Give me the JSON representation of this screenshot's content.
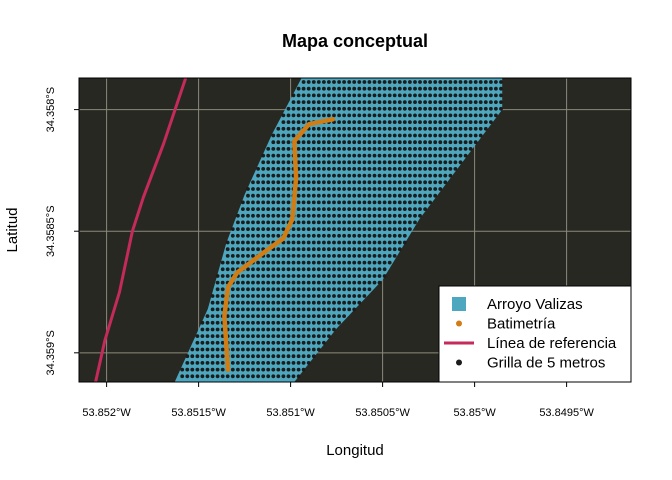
{
  "title": "Mapa conceptual",
  "xlabel": "Longitud",
  "ylabel": "Latitud",
  "colors": {
    "panel_bg": "#282823",
    "grid": "#8a8a7a",
    "stream": "#4da8bf",
    "bathymetry": "#d07d16",
    "reference_line": "#c42a5a",
    "grid_points": "#1c1c1c"
  },
  "chart_data": {
    "type": "map",
    "xlim": [
      -53.85215,
      -53.84915
    ],
    "ylim": [
      -34.35912,
      -34.35787
    ],
    "x_ticks": [
      {
        "value": -53.852,
        "label": "53.852°W"
      },
      {
        "value": -53.8515,
        "label": "53.8515°W"
      },
      {
        "value": -53.851,
        "label": "53.851°W"
      },
      {
        "value": -53.8505,
        "label": "53.8505°W"
      },
      {
        "value": -53.85,
        "label": "53.85°W"
      },
      {
        "value": -53.8495,
        "label": "53.8495°W"
      }
    ],
    "y_ticks": [
      {
        "value": -34.358,
        "label": "34.358°S"
      },
      {
        "value": -34.3585,
        "label": "34.3585°S"
      },
      {
        "value": -34.359,
        "label": "34.359°S"
      }
    ],
    "grid": true,
    "legend": {
      "placement": "bottom-right",
      "entries": [
        {
          "label": "Arroyo Valizas",
          "symbol": "square",
          "color": "#4da8bf"
        },
        {
          "label": "Batimetría",
          "symbol": "point",
          "color": "#d07d16"
        },
        {
          "label": "Línea de referencia",
          "symbol": "line",
          "color": "#c42a5a"
        },
        {
          "label": "Grilla de 5 metros",
          "symbol": "point",
          "color": "#1c1c1c"
        }
      ]
    },
    "stream_polygon": [
      [
        -53.85094,
        -34.35787
      ],
      [
        -53.85058,
        -34.35787
      ],
      [
        -53.84985,
        -34.35787
      ],
      [
        -53.84985,
        -34.358
      ],
      [
        -53.8501,
        -34.35825
      ],
      [
        -53.8503,
        -34.35845
      ],
      [
        -53.8505,
        -34.3587
      ],
      [
        -53.85075,
        -34.3589
      ],
      [
        -53.85098,
        -34.35912
      ],
      [
        -53.85163,
        -34.35912
      ],
      [
        -53.85145,
        -34.35882
      ],
      [
        -53.85135,
        -34.35855
      ],
      [
        -53.85125,
        -34.35835
      ],
      [
        -53.8511,
        -34.3581
      ]
    ],
    "bathymetry_path": [
      [
        -53.85077,
        -34.35804
      ],
      [
        -53.8509,
        -34.35806
      ],
      [
        -53.85098,
        -34.35813
      ],
      [
        -53.85097,
        -34.35828
      ],
      [
        -53.85099,
        -34.35845
      ],
      [
        -53.85104,
        -34.35853
      ],
      [
        -53.85115,
        -34.35859
      ],
      [
        -53.85129,
        -34.35867
      ],
      [
        -53.85134,
        -34.35873
      ],
      [
        -53.85136,
        -34.35885
      ],
      [
        -53.85134,
        -34.35907
      ]
    ],
    "reference_line": [
      [
        -53.85157,
        -34.35787
      ],
      [
        -53.85169,
        -34.35814
      ],
      [
        -53.8518,
        -34.35836
      ],
      [
        -53.85186,
        -34.3585
      ],
      [
        -53.85193,
        -34.35875
      ],
      [
        -53.85201,
        -34.35895
      ],
      [
        -53.85206,
        -34.35912
      ]
    ],
    "grid_spacing_deg": 2.75e-05
  }
}
